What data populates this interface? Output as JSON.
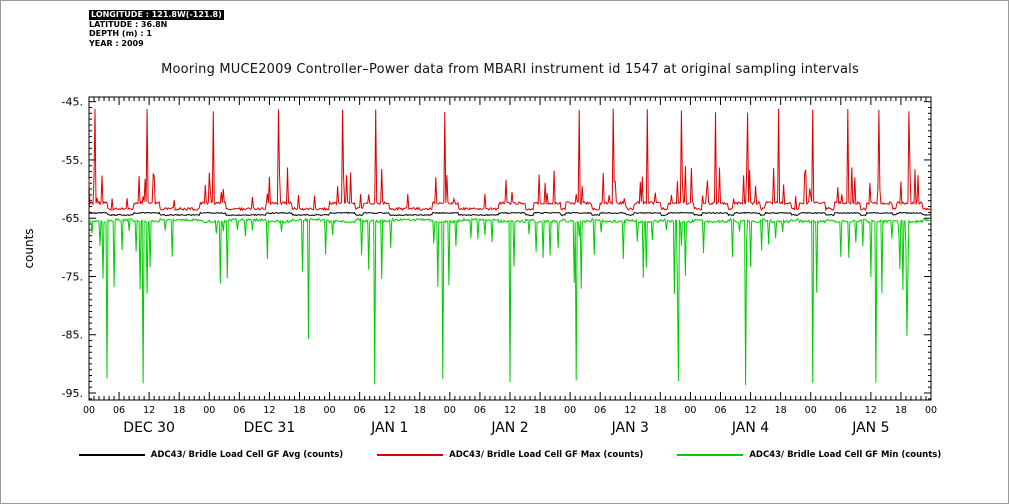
{
  "header": {
    "longitude": "LONGITUDE : 121.8W(-121.8)",
    "latitude": "LATITUDE : 36.8N",
    "depth": "DEPTH (m) : 1",
    "year": "YEAR : 2009"
  },
  "chart_data": {
    "type": "line",
    "title": "Mooring MUCE2009 Controller–Power data from MBARI instrument id 1547 at original sampling intervals",
    "xlabel": "",
    "ylabel": "counts",
    "ylim": [
      -96.2,
      -44.2
    ],
    "yticks": [
      -45,
      -55,
      -65,
      -75,
      -85,
      -95
    ],
    "ytick_labels": [
      "-45.",
      "-55.",
      "-65.",
      "-75.",
      "-85.",
      "-95."
    ],
    "x_total_hours": 168,
    "x_minor_tick_hours": 1,
    "x_major_tick_hours": 6,
    "hour_tick_labels": [
      "00",
      "06",
      "12",
      "18",
      "00",
      "06",
      "12",
      "18",
      "00",
      "06",
      "12",
      "18",
      "00",
      "06",
      "12",
      "18",
      "00",
      "06",
      "12",
      "18",
      "00",
      "06",
      "12",
      "18",
      "00",
      "06",
      "12",
      "18",
      "00"
    ],
    "day_labels": [
      "DEC 30",
      "DEC 31",
      "JAN 1",
      "JAN 2",
      "JAN 3",
      "JAN 4",
      "JAN 5"
    ],
    "grid": false,
    "legend_position": "bottom",
    "series": [
      {
        "name": "ADC43/ Bridle Load Cell GF Avg (counts)",
        "color": "#000000",
        "baseline": -64.45,
        "cluster_bump": 0.35
      },
      {
        "name": "ADC43/ Bridle Load Cell GF Max (counts)",
        "color": "#dd0000",
        "baseline": -63.4,
        "cluster_plateau": -62.4,
        "major_spike_value": -46.5,
        "major_spike_hours": [
          1.2,
          11.6,
          24.8,
          37.9,
          50.5,
          57.3,
          71.1,
          84.4,
          91.4,
          97.8,
          104.6,
          111.4,
          118.2,
          125.0,
          131.3,
          137.5,
          144.3,
          151.3,
          157.7,
          163.7
        ],
        "minor_spike_range": [
          -61,
          -56
        ]
      },
      {
        "name": "ADC43/ Bridle Load Cell GF Min (counts)",
        "color": "#00cc00",
        "baseline": -65.3,
        "deep_dip_value": -92.5,
        "deep_dip_hours": [
          3.5,
          10.8,
          27.6,
          43.9,
          57.0,
          70.6,
          84.1,
          97.2,
          110.6,
          117.6,
          130.9,
          144.4,
          157.1,
          163.2
        ],
        "medium_dip_range": [
          -72,
          -67
        ]
      }
    ]
  }
}
